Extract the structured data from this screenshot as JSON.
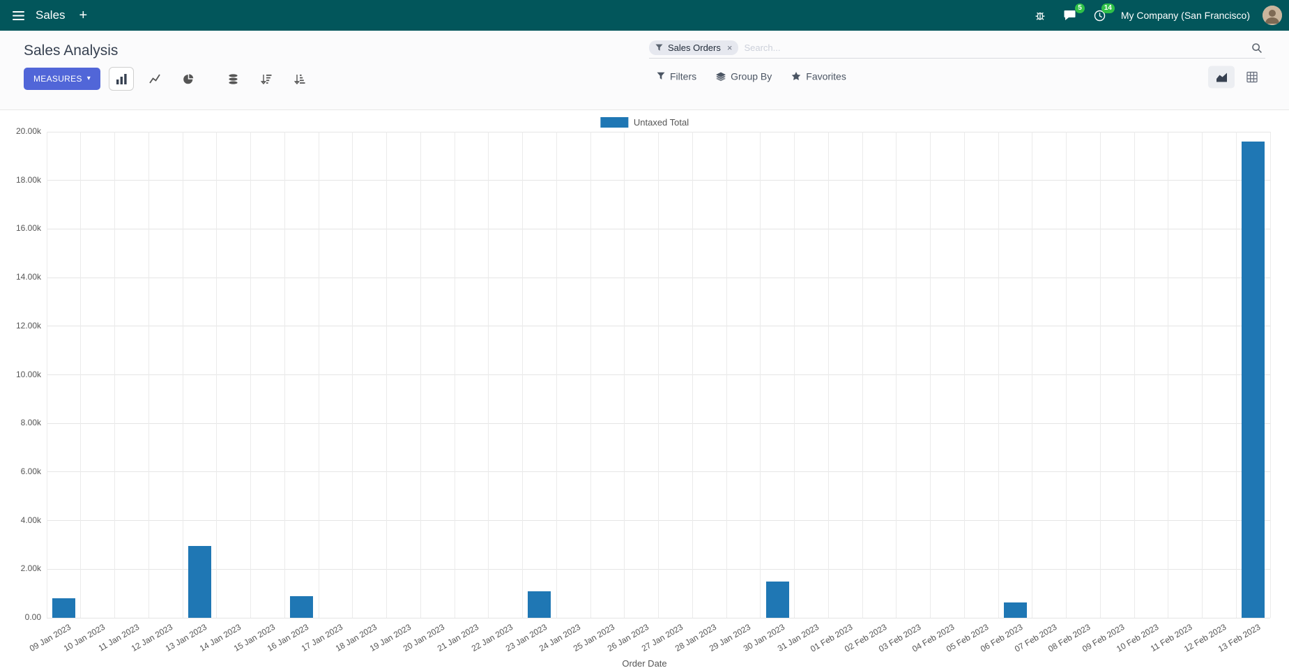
{
  "navbar": {
    "app_name": "Sales",
    "plus": "+",
    "company": "My Company (San Francisco)",
    "messages_badge": "5",
    "activities_badge": "14"
  },
  "control_panel": {
    "title": "Sales Analysis",
    "search": {
      "facet_label": "Sales Orders",
      "facet_remove": "×",
      "placeholder": "Search..."
    },
    "buttons": {
      "measures": "MEASURES",
      "measures_caret": "▾",
      "filters": "Filters",
      "group_by": "Group By",
      "favorites": "Favorites"
    }
  },
  "chart_data": {
    "type": "bar",
    "series_name": "Untaxed Total",
    "legend": [
      "Untaxed Total"
    ],
    "legend_position": "top-center",
    "grid": true,
    "bar_color": "#1f77b4",
    "xlabel": "Order Date",
    "ylabel": "",
    "ylim": [
      0,
      20000
    ],
    "ytick_step": 2000,
    "ytick_labels": [
      "0.00",
      "2.00k",
      "4.00k",
      "6.00k",
      "8.00k",
      "10.00k",
      "12.00k",
      "14.00k",
      "16.00k",
      "18.00k",
      "20.00k"
    ],
    "categories": [
      "09 Jan 2023",
      "10 Jan 2023",
      "11 Jan 2023",
      "12 Jan 2023",
      "13 Jan 2023",
      "14 Jan 2023",
      "15 Jan 2023",
      "16 Jan 2023",
      "17 Jan 2023",
      "18 Jan 2023",
      "19 Jan 2023",
      "20 Jan 2023",
      "21 Jan 2023",
      "22 Jan 2023",
      "23 Jan 2023",
      "24 Jan 2023",
      "25 Jan 2023",
      "26 Jan 2023",
      "27 Jan 2023",
      "28 Jan 2023",
      "29 Jan 2023",
      "30 Jan 2023",
      "31 Jan 2023",
      "01 Feb 2023",
      "02 Feb 2023",
      "03 Feb 2023",
      "04 Feb 2023",
      "05 Feb 2023",
      "06 Feb 2023",
      "07 Feb 2023",
      "08 Feb 2023",
      "09 Feb 2023",
      "10 Feb 2023",
      "11 Feb 2023",
      "12 Feb 2023",
      "13 Feb 2023"
    ],
    "values": [
      800,
      0,
      0,
      0,
      2950,
      0,
      0,
      900,
      0,
      0,
      0,
      0,
      0,
      0,
      1100,
      0,
      0,
      0,
      0,
      0,
      0,
      1500,
      0,
      0,
      0,
      0,
      0,
      0,
      620,
      0,
      0,
      0,
      0,
      0,
      0,
      19600
    ]
  },
  "colors": {
    "navbar_bg": "#02565b",
    "primary_button": "#5166d8",
    "badge_green": "#2fc148",
    "bar": "#1f77b4"
  }
}
